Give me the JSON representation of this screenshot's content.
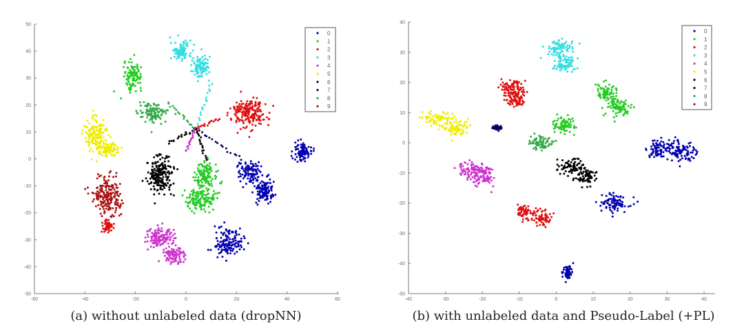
{
  "colors": {
    "0": "#0000b0",
    "1": "#22cc22",
    "2": "#dd1111",
    "3": "#33dde0",
    "4": "#cc33cc",
    "5": "#eeee00",
    "6": "#000000",
    "7": "#000060",
    "8": "#33aa44",
    "9": "#aa1111"
  },
  "chart_data": [
    {
      "type": "scatter",
      "caption": "(a) without unlabeled data (dropNN)",
      "xlim": [
        -60,
        60
      ],
      "ylim": [
        -50,
        50
      ],
      "xticks": [
        -60,
        -40,
        -20,
        0,
        20,
        40,
        60
      ],
      "yticks": [
        -50,
        -40,
        -30,
        -20,
        -10,
        0,
        10,
        20,
        30,
        40,
        50
      ],
      "grid": false,
      "legend": {
        "placement": "top-right",
        "entries": [
          "0",
          "1",
          "2",
          "3",
          "4",
          "5",
          "6",
          "7",
          "8",
          "9"
        ]
      },
      "clusters": [
        {
          "class": "3",
          "center": [
            -2,
            40
          ],
          "spread": [
            3,
            2.5
          ]
        },
        {
          "class": "3",
          "center": [
            6,
            34
          ],
          "spread": [
            2.5,
            3
          ]
        },
        {
          "class": "1",
          "center": [
            -21,
            31
          ],
          "spread": [
            2.5,
            3.5
          ]
        },
        {
          "class": "8",
          "center": [
            -13,
            17
          ],
          "spread": [
            4,
            2.5
          ]
        },
        {
          "class": "2",
          "center": [
            25,
            17
          ],
          "spread": [
            5,
            4
          ]
        },
        {
          "class": "0",
          "center": [
            46,
            3
          ],
          "spread": [
            2.5,
            2.5
          ]
        },
        {
          "class": "0",
          "center": [
            25,
            -5
          ],
          "spread": [
            3,
            3
          ]
        },
        {
          "class": "0",
          "center": [
            31,
            -12
          ],
          "spread": [
            3,
            3
          ]
        },
        {
          "class": "0",
          "center": [
            17,
            -31
          ],
          "spread": [
            4,
            3.5
          ]
        },
        {
          "class": "5",
          "center": [
            -36,
            9
          ],
          "spread": [
            3,
            4.5
          ]
        },
        {
          "class": "5",
          "center": [
            -31,
            4
          ],
          "spread": [
            3,
            2
          ]
        },
        {
          "class": "6",
          "center": [
            -10,
            -6
          ],
          "spread": [
            4,
            5
          ]
        },
        {
          "class": "1",
          "center": [
            8,
            -6
          ],
          "spread": [
            3,
            3.5
          ]
        },
        {
          "class": "1",
          "center": [
            6,
            -15
          ],
          "spread": [
            4,
            3
          ]
        },
        {
          "class": "9",
          "center": [
            -31,
            -14
          ],
          "spread": [
            4,
            5
          ]
        },
        {
          "class": "2",
          "center": [
            -31,
            -25
          ],
          "spread": [
            1.5,
            1.5
          ]
        },
        {
          "class": "4",
          "center": [
            -11,
            -29
          ],
          "spread": [
            4,
            2.5
          ]
        },
        {
          "class": "4",
          "center": [
            -5,
            -36
          ],
          "spread": [
            3,
            2.5
          ]
        }
      ],
      "arms": [
        {
          "class": "3",
          "from": [
            4,
            11
          ],
          "to": [
            10,
            28
          ]
        },
        {
          "class": "8",
          "from": [
            4,
            11
          ],
          "to": [
            -7,
            21
          ]
        },
        {
          "class": "6",
          "from": [
            4,
            11
          ],
          "to": [
            -7,
            6
          ]
        },
        {
          "class": "7",
          "from": [
            4,
            11
          ],
          "to": [
            22,
            0
          ]
        },
        {
          "class": "2",
          "from": [
            4,
            11
          ],
          "to": [
            13,
            15
          ]
        },
        {
          "class": "4",
          "from": [
            4,
            11
          ],
          "to": [
            0,
            3
          ]
        },
        {
          "class": "6",
          "from": [
            4,
            11
          ],
          "to": [
            8,
            0
          ]
        }
      ]
    },
    {
      "type": "scatter",
      "caption": "(b) with unlabeled data and Pseudo-Label (+PL)",
      "xlim": [
        -40,
        43
      ],
      "ylim": [
        -50,
        40
      ],
      "xticks": [
        -40,
        -30,
        -20,
        -10,
        0,
        10,
        20,
        30,
        40
      ],
      "yticks": [
        -50,
        -40,
        -30,
        -20,
        -10,
        0,
        10,
        20,
        30,
        40
      ],
      "grid": false,
      "legend": {
        "placement": "top-right",
        "entries": [
          "0",
          "1",
          "2",
          "3",
          "4",
          "5",
          "6",
          "7",
          "8",
          "9"
        ]
      },
      "clusters": [
        {
          "class": "3",
          "center": [
            1,
            31
          ],
          "spread": [
            2.5,
            2.2
          ]
        },
        {
          "class": "3",
          "center": [
            2,
            26
          ],
          "spread": [
            2,
            2
          ]
        },
        {
          "class": "2",
          "center": [
            -12,
            18
          ],
          "spread": [
            2.5,
            2.2
          ]
        },
        {
          "class": "2",
          "center": [
            -11,
            14
          ],
          "spread": [
            2,
            1.8
          ]
        },
        {
          "class": "2",
          "center": [
            -9,
            -23
          ],
          "spread": [
            1.5,
            1.5
          ]
        },
        {
          "class": "2",
          "center": [
            -4,
            -25
          ],
          "spread": [
            2,
            2
          ]
        },
        {
          "class": "5",
          "center": [
            -32,
            8
          ],
          "spread": [
            2.5,
            1.8
          ]
        },
        {
          "class": "5",
          "center": [
            -27,
            5
          ],
          "spread": [
            2.2,
            1.8
          ]
        },
        {
          "class": "1",
          "center": [
            14,
            16
          ],
          "spread": [
            2,
            3
          ]
        },
        {
          "class": "1",
          "center": [
            17,
            12
          ],
          "spread": [
            2,
            2
          ]
        },
        {
          "class": "1",
          "center": [
            2,
            6
          ],
          "spread": [
            2.5,
            2
          ]
        },
        {
          "class": "8",
          "center": [
            -4,
            0
          ],
          "spread": [
            2.5,
            1.8
          ]
        },
        {
          "class": "4",
          "center": [
            -23,
            -9
          ],
          "spread": [
            3,
            2
          ]
        },
        {
          "class": "4",
          "center": [
            -20,
            -11
          ],
          "spread": [
            2,
            2
          ]
        },
        {
          "class": "6",
          "center": [
            4,
            -8
          ],
          "spread": [
            2.5,
            1.8
          ]
        },
        {
          "class": "6",
          "center": [
            8,
            -11
          ],
          "spread": [
            2,
            2
          ]
        },
        {
          "class": "0",
          "center": [
            28,
            -2
          ],
          "spread": [
            2.5,
            2
          ]
        },
        {
          "class": "0",
          "center": [
            34,
            -3
          ],
          "spread": [
            3,
            2.5
          ]
        },
        {
          "class": "0",
          "center": [
            16,
            -20
          ],
          "spread": [
            3,
            2
          ]
        },
        {
          "class": "0",
          "center": [
            3,
            -43
          ],
          "spread": [
            1,
            1.5
          ]
        },
        {
          "class": "7",
          "center": [
            -16,
            5
          ],
          "spread": [
            1,
            0.5
          ]
        }
      ],
      "arms": []
    }
  ]
}
